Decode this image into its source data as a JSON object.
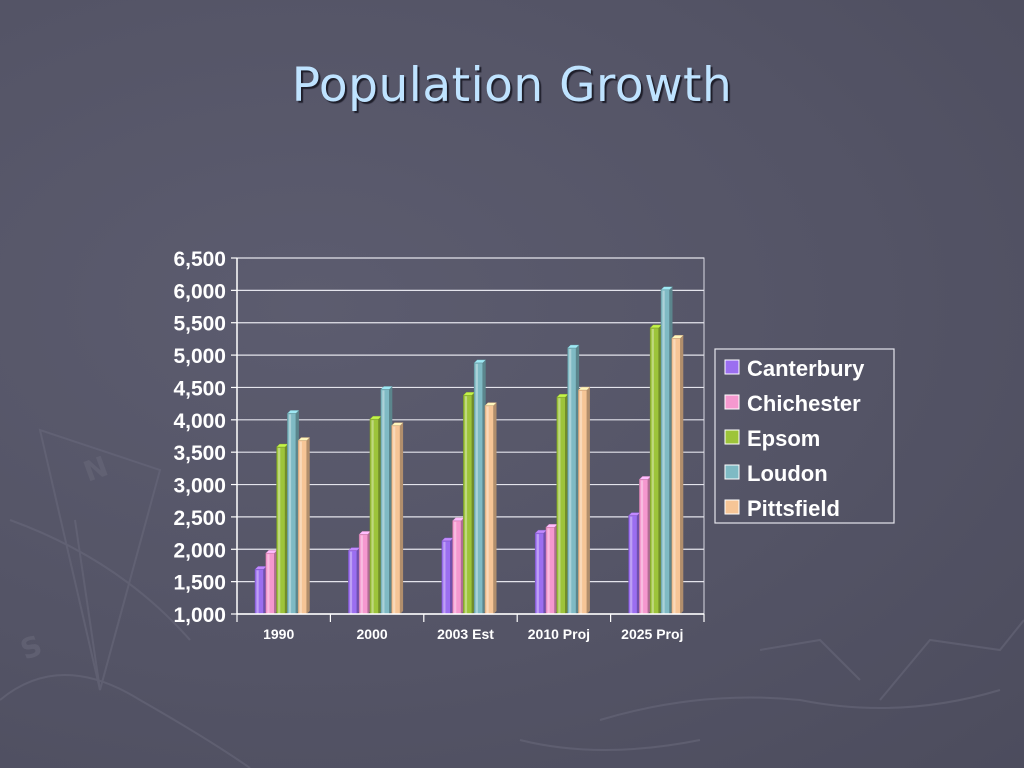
{
  "slide": {
    "title": "Population Growth"
  },
  "chart_data": {
    "type": "bar",
    "categories": [
      "1990",
      "2000",
      "2003 Est",
      "2010 Proj",
      "2025 Proj"
    ],
    "series": [
      {
        "name": "Canterbury",
        "color": "#9b6ef0",
        "values": [
          1690,
          1980,
          2130,
          2250,
          2520
        ]
      },
      {
        "name": "Chichester",
        "color": "#f598cf",
        "values": [
          1940,
          2230,
          2440,
          2340,
          3080
        ]
      },
      {
        "name": "Epsom",
        "color": "#9dc43a",
        "values": [
          3580,
          4010,
          4380,
          4350,
          5420
        ]
      },
      {
        "name": "Loudon",
        "color": "#7fbac4",
        "values": [
          4100,
          4470,
          4880,
          5110,
          6010
        ]
      },
      {
        "name": "Pittsfield",
        "color": "#f6c596",
        "values": [
          3680,
          3910,
          4220,
          4460,
          5260
        ]
      }
    ],
    "ylim": [
      1000,
      6500
    ],
    "yticks": [
      "1,000",
      "1,500",
      "2,000",
      "2,500",
      "3,000",
      "3,500",
      "4,000",
      "4,500",
      "5,000",
      "5,500",
      "6,000",
      "6,500"
    ],
    "grid": true,
    "legend_position": "right"
  }
}
